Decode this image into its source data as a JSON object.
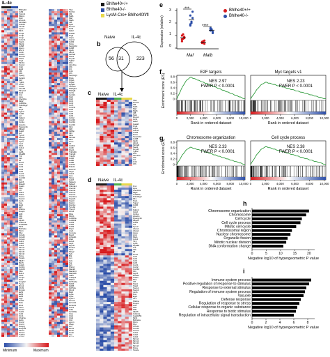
{
  "panel_a": {
    "header": "IL-4c",
    "genes_col1": [
      "Bhlhe40",
      "Cd5l",
      "Vcam1",
      "Marco",
      "Spic",
      "Hmox1",
      "Slc40a1",
      "Cd163",
      "Timd4",
      "Lyve1",
      "Mrc1",
      "C1qa",
      "C1qb",
      "C1qc",
      "Cx3cr1",
      "Fcgr1",
      "Mertk",
      "Cd68",
      "Itgam",
      "Emr1",
      "Csf1r",
      "Ccl24",
      "Retnla",
      "Chil3",
      "Arg1",
      "Mrc1b",
      "Socs2",
      "Cish",
      "Egr2",
      "Irf4",
      "Klf4",
      "Pparg",
      "Cebpb",
      "Il10",
      "Tgfb1",
      "Ccl17",
      "Ccl22",
      "Alox15",
      "Mmp12",
      "Ear2",
      "Fn1",
      "Lipa",
      "Clec10a",
      "Mgl2",
      "Cd209a",
      "Pdcd1lg2",
      "Flt1",
      "Nrp1",
      "Tgm2",
      "Cd36",
      "Lpl",
      "Fabp4",
      "Ucp2",
      "Cpt1a",
      "Acadm",
      "Ppargc1b",
      "Mfge8",
      "Gas6",
      "Axl",
      "Tyro3",
      "Abca1",
      "Abcg1",
      "Apoe",
      "Lrp1",
      "Msr1",
      "Cd14",
      "Tlr4",
      "Ly96",
      "Myd88",
      "Tnf",
      "Il1b",
      "Il6",
      "Nos2",
      "Ccl2",
      "Ccl3",
      "Ccl4",
      "Ccl5",
      "Cxcl1",
      "Cxcl2",
      "Cxcl10",
      "Ifit1",
      "Isg15",
      "Rsad2",
      "Oasl1",
      "Mx1",
      "Irf7",
      "Stat1",
      "Stat2",
      "Socs1",
      "Socs3",
      "Junb",
      "Fos",
      "Egr1",
      "Ier3",
      "Nfkbia",
      "Dusp1",
      "Atf3",
      "Klf2",
      "Klf6",
      "Zfp36",
      "Cdkn1a",
      "Gadd45b",
      "Mcl1",
      "Bcl2a1a",
      "Pim1",
      "Myc",
      "Ccnd1",
      "Ccnd2",
      "Ccne1",
      "Cdk1",
      "Cdk2",
      "Cdk4",
      "Mcm2",
      "Mcm3",
      "Mcm5",
      "Mcm6",
      "Pcna",
      "Top2a",
      "Mki67",
      "Birc5",
      "Aurkb",
      "Ccnb1",
      "Cdc20",
      "Plk1",
      "Bub1",
      "Kif11",
      "Cenpf",
      "Ect2",
      "Hmgb2",
      "Tyms",
      "Rrm2",
      "Uhrf1",
      "Dnmt1",
      "E2f1",
      "E2f2",
      "E2f8",
      "Lig1",
      "Pola1",
      "Pole",
      "Rfc4",
      "Fen1",
      "Gins2",
      "Cdc6",
      "Cdt1",
      "Orc1",
      "Chaf1a",
      "Hells",
      "Smc2",
      "Smc4",
      "Ncapg",
      "Ncapd2",
      "Tacc3",
      "Stmn1",
      "Tubb5",
      "H2afz",
      "Hist1h1b",
      "Hist1h2ab",
      "Ranbp1",
      "Nap1l1",
      "Ezh2",
      "Lmnb1",
      "Cks1b",
      "Cks2",
      "Ube2c",
      "Racgap1",
      "Prc1"
    ],
    "genes_col2": [
      "Tfec",
      "Nr1h3",
      "Id3",
      "Sall1",
      "Maf",
      "Mafb",
      "Irf8",
      "Spi1",
      "Runx1",
      "Ikzf1",
      "Zeb2",
      "Gata6",
      "Prg4",
      "Aspa",
      "Icam2",
      "Cd93",
      "Fcna",
      "Serpinb2",
      "Cd38",
      "Itga6",
      "Ltbp1",
      "Slc2a5",
      "Saa3",
      "Fxyd2",
      "Tgfb2",
      "Wt1",
      "Alox12e",
      "Cfb",
      "C3",
      "C4b",
      "Cfh",
      "Serping1",
      "Ptgis",
      "Ptgs1",
      "Ptgs2",
      "Hpgds",
      "Tbxas1",
      "Pla2g2d",
      "Pla2g5",
      "Ltc4s",
      "Cysltr1",
      "Fpr1",
      "Fpr2",
      "Ccr1",
      "Ccr2",
      "Ccr5",
      "Cx3cl1",
      "Ccl6",
      "Ccl7",
      "Ccl8",
      "Ccl9",
      "Ccl12",
      "Cxcl13",
      "Cxcl14",
      "Cxcl16",
      "Il1rn",
      "Il18",
      "Il18bp",
      "Il33",
      "Il4ra",
      "Il13ra1",
      "Il21r",
      "Osm",
      "Lif",
      "Csf2rb",
      "Csf3r",
      "Ifngr1",
      "Tnfrsf1b",
      "Tnfrsf9",
      "Tnfsf9",
      "Cd40",
      "Cd80",
      "Cd86",
      "Cd274",
      "Pdcd1",
      "Havcr2",
      "Lag3",
      "Ctla4",
      "Icos",
      "Sirpa",
      "Cd47",
      "Siglec1",
      "Siglecf",
      "Clec4a1",
      "Clec4d",
      "Clec4e",
      "Clec4n",
      "Clec7a",
      "Clec12a",
      "Fcgr2b",
      "Fcgr3",
      "Fcgr4",
      "Fcer1g",
      "Tyrobp",
      "Trem2",
      "Lilrb4",
      "Pilra",
      "Pilrb1",
      "Cd300a",
      "Cd300lf",
      "Cd33",
      "Cd52",
      "Cd53",
      "Ptprc",
      "Lcp1",
      "Coro1a",
      "Rac2",
      "Arhgdib",
      "Was",
      "Hcls1",
      "Lsp1",
      "Myo1f",
      "Dock2",
      "Vav1",
      "Plcg2",
      "Syk",
      "Btk",
      "Lyn",
      "Hck",
      "Fgr",
      "Fyn",
      "Prkcd",
      "Mapk3",
      "Mapk14",
      "Map3k8",
      "Irak3",
      "Tnfaip3",
      "Nfkbiz",
      "Zc3h12a",
      "Ifi204",
      "Ifi205",
      "Ifi27l2a",
      "Ifitm3",
      "Bst2",
      "Ly6a",
      "Ly6e",
      "Ly6c1",
      "H2-Aa",
      "H2-Ab1",
      "H2-Eb1",
      "Cd74",
      "Ciita",
      "H2-DMa",
      "Ctss",
      "Ctsb",
      "Ctsd",
      "Ctsl",
      "Lgmn",
      "Psap",
      "Grn",
      "Hexa",
      "Hexb",
      "Gusb",
      "Gla",
      "Npc1",
      "Npc2",
      "Lamp1",
      "Lamp2",
      "Atp6v0d2",
      "Mmp13",
      "Mmp14"
    ],
    "legend_min": "Minimum",
    "legend_max": "Maximum"
  },
  "legend_genotypes": [
    "Bhlhe40+/+",
    "Bhlhe40-/-",
    "LysM-Cre+ Bhlhe40fl/fl"
  ],
  "panel_b": {
    "letter": "b",
    "label_a": "Naive",
    "label_b": "IL-4c",
    "left": "56",
    "mid": "31",
    "right": "223"
  },
  "panel_c": {
    "letter": "c",
    "label_a": "Naive",
    "label_b": "IL-4c"
  },
  "panel_d": {
    "letter": "d",
    "label_a": "Naive",
    "label_b": "IL-4c"
  },
  "panel_e": {
    "letter": "e",
    "ylabel": "Expression (relative)",
    "yticks": [
      "0",
      "1",
      "2",
      "3"
    ],
    "groups": [
      "Maf",
      "Mafb"
    ],
    "sig": [
      "***",
      "****"
    ],
    "legend": [
      "Bhlhe40+/+",
      "Bhlhe40-/-"
    ]
  },
  "gsea": [
    {
      "letter": "f",
      "title": "E2F targets",
      "nes": "NES 2.97",
      "fwer": "FWER P < 0.0001",
      "peak": 0.78
    },
    {
      "letter": "",
      "title": "Myc targets v1",
      "nes": "NES 2.23",
      "fwer": "FWER P < 0.0001",
      "peak": 0.6
    },
    {
      "letter": "g",
      "title": "Chromosome organization",
      "nes": "NES 2.33",
      "fwer": "FWER P < 0.0001",
      "peak": 0.62
    },
    {
      "letter": "",
      "title": "Cell cycle process",
      "nes": "NES 2.38",
      "fwer": "FWER P < 0.0001",
      "peak": 0.64
    }
  ],
  "gsea_axis": {
    "ylabel": "Enrichment score (ES)",
    "xlabel": "Rank in ordered dataset",
    "yticks": [
      "0",
      "0.2",
      "0.4",
      "0.6",
      "0.8"
    ],
    "xticks": [
      "0",
      "2,000",
      "4,000",
      "6,000",
      "8,000",
      "10,000"
    ]
  },
  "panel_h": {
    "letter": "h",
    "terms": [
      "Chromosome organization",
      "Chromosome",
      "Cell cycle",
      "Cell cycle process",
      "Mitotic cell cycle",
      "Chromosomal region",
      "Nuclear chromosome",
      "Organelle fission",
      "Mitotic nuclear division",
      "DNA conformation change"
    ],
    "values": [
      20,
      19,
      17.5,
      17,
      15.5,
      14,
      13.5,
      12.5,
      12,
      11
    ],
    "xticks": [
      "0",
      "5",
      "10",
      "15",
      "20"
    ],
    "xlabel": "Negative log10 of hypergeometric P value"
  },
  "panel_i": {
    "letter": "i",
    "terms": [
      "Immune system process",
      "Positive regulation of response to stimulus",
      "Response to external stimulus",
      "Regulation of immune system process",
      "Vacuole",
      "Defense response",
      "Regulation of response to stress",
      "Cellular response to organic substance",
      "Response to biotic stimulus",
      "Regulation of intracellular signal transduction"
    ],
    "values": [
      8.5,
      8.2,
      7.8,
      7.6,
      7.4,
      7.0,
      6.8,
      6.5,
      6.3,
      6.0
    ],
    "xticks": [
      "0",
      "2",
      "4",
      "6",
      "8"
    ],
    "xlabel": "Negative log10 of hypergeometric P value"
  },
  "colors": {
    "red": "#d7191c",
    "blue": "#2c4ea8",
    "white": "#f4f4f4",
    "yellow": "#e8d84a",
    "green": "#4cae4c"
  }
}
